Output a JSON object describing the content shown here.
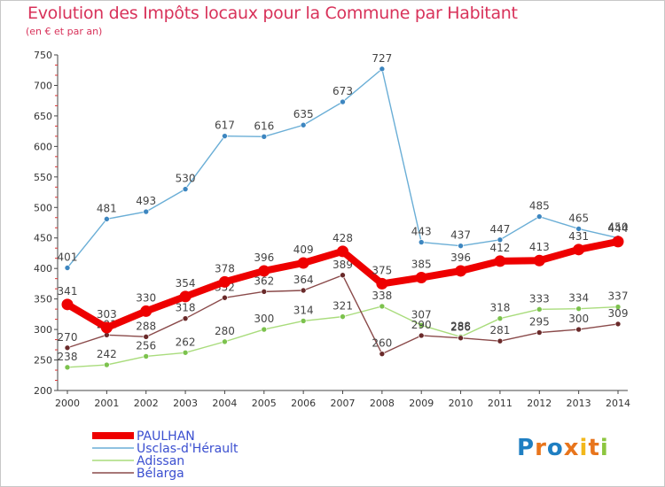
{
  "header": {
    "title": "Evolution des Impôts locaux pour la Commune par Habitant",
    "subtitle": "(en € et par an)"
  },
  "logo": {
    "text": "Proxiti",
    "letter_colors": [
      "#1f7fc2",
      "#e8751c",
      "#1f7fc2",
      "#e8751c",
      "#f2b81b",
      "#e8751c",
      "#8dc63f"
    ]
  },
  "chart_data": {
    "type": "line",
    "title": "Evolution des Impôts locaux pour la Commune par Habitant",
    "subtitle": "(en € et par an)",
    "xlabel": "",
    "ylabel": "",
    "x": [
      "2000",
      "2001",
      "2002",
      "2003",
      "2004",
      "2005",
      "2006",
      "2007",
      "2008",
      "2009",
      "2010",
      "2011",
      "2012",
      "2013",
      "2014"
    ],
    "ylim": [
      200,
      750
    ],
    "yticks": [
      200,
      250,
      300,
      350,
      400,
      450,
      500,
      550,
      600,
      650,
      700,
      750
    ],
    "grid": false,
    "legend_position": "bottom-left",
    "series": [
      {
        "name": "Usclas-d'Hérault",
        "color": "#6aaed6",
        "point_color": "#3d86c0",
        "values": [
          401,
          481,
          493,
          530,
          617,
          616,
          635,
          673,
          727,
          443,
          437,
          447,
          485,
          465,
          450
        ]
      },
      {
        "name": "Adissan",
        "color": "#a9dc7c",
        "point_color": "#7cc24d",
        "values": [
          238,
          242,
          256,
          262,
          280,
          300,
          314,
          321,
          338,
          307,
          288,
          318,
          333,
          334,
          337
        ]
      },
      {
        "name": "Bélarga",
        "color": "#8a4a4a",
        "point_color": "#6a2a2a",
        "values": [
          270,
          291,
          288,
          318,
          352,
          362,
          364,
          389,
          260,
          290,
          286,
          281,
          295,
          300,
          309
        ]
      },
      {
        "name": "PAULHAN",
        "color": "#ee0000",
        "point_color": "#ee0000",
        "emphasis": true,
        "values": [
          341,
          303,
          330,
          354,
          378,
          396,
          409,
          428,
          375,
          385,
          396,
          412,
          413,
          431,
          444
        ]
      }
    ]
  }
}
